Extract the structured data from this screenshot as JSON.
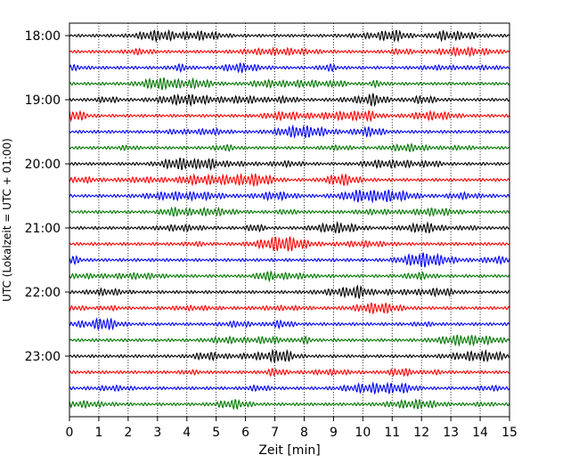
{
  "chart_data": {
    "type": "line",
    "title": "",
    "xlabel": "Zeit  [min]",
    "ylabel": "UTC (Lokalzeit = UTC + 01:00)",
    "xlim": [
      0,
      15
    ],
    "x_ticks": [
      "0",
      "1",
      "2",
      "3",
      "4",
      "5",
      "6",
      "7",
      "8",
      "9",
      "10",
      "11",
      "12",
      "13",
      "14",
      "15"
    ],
    "y_ticks": [
      "18:00",
      "19:00",
      "20:00",
      "21:00",
      "22:00",
      "23:00"
    ],
    "grid": "vertical dotted",
    "trace_interval_minutes": 15,
    "trace_colors": [
      "#000000",
      "#ff0000",
      "#0000ff",
      "#007700"
    ],
    "series": [
      {
        "start": "18:00",
        "color": "#000000"
      },
      {
        "start": "18:15",
        "color": "#ff0000"
      },
      {
        "start": "18:30",
        "color": "#0000ff"
      },
      {
        "start": "18:45",
        "color": "#007700"
      },
      {
        "start": "19:00",
        "color": "#000000"
      },
      {
        "start": "19:15",
        "color": "#ff0000"
      },
      {
        "start": "19:30",
        "color": "#0000ff"
      },
      {
        "start": "19:45",
        "color": "#007700"
      },
      {
        "start": "20:00",
        "color": "#000000"
      },
      {
        "start": "20:15",
        "color": "#ff0000"
      },
      {
        "start": "20:30",
        "color": "#0000ff"
      },
      {
        "start": "20:45",
        "color": "#007700"
      },
      {
        "start": "21:00",
        "color": "#000000"
      },
      {
        "start": "21:15",
        "color": "#ff0000"
      },
      {
        "start": "21:30",
        "color": "#0000ff"
      },
      {
        "start": "21:45",
        "color": "#007700"
      },
      {
        "start": "22:00",
        "color": "#000000"
      },
      {
        "start": "22:15",
        "color": "#ff0000"
      },
      {
        "start": "22:30",
        "color": "#0000ff"
      },
      {
        "start": "22:45",
        "color": "#007700"
      },
      {
        "start": "23:00",
        "color": "#000000"
      },
      {
        "start": "23:15",
        "color": "#ff0000"
      },
      {
        "start": "23:30",
        "color": "#0000ff"
      },
      {
        "start": "23:45",
        "color": "#007700"
      }
    ]
  }
}
